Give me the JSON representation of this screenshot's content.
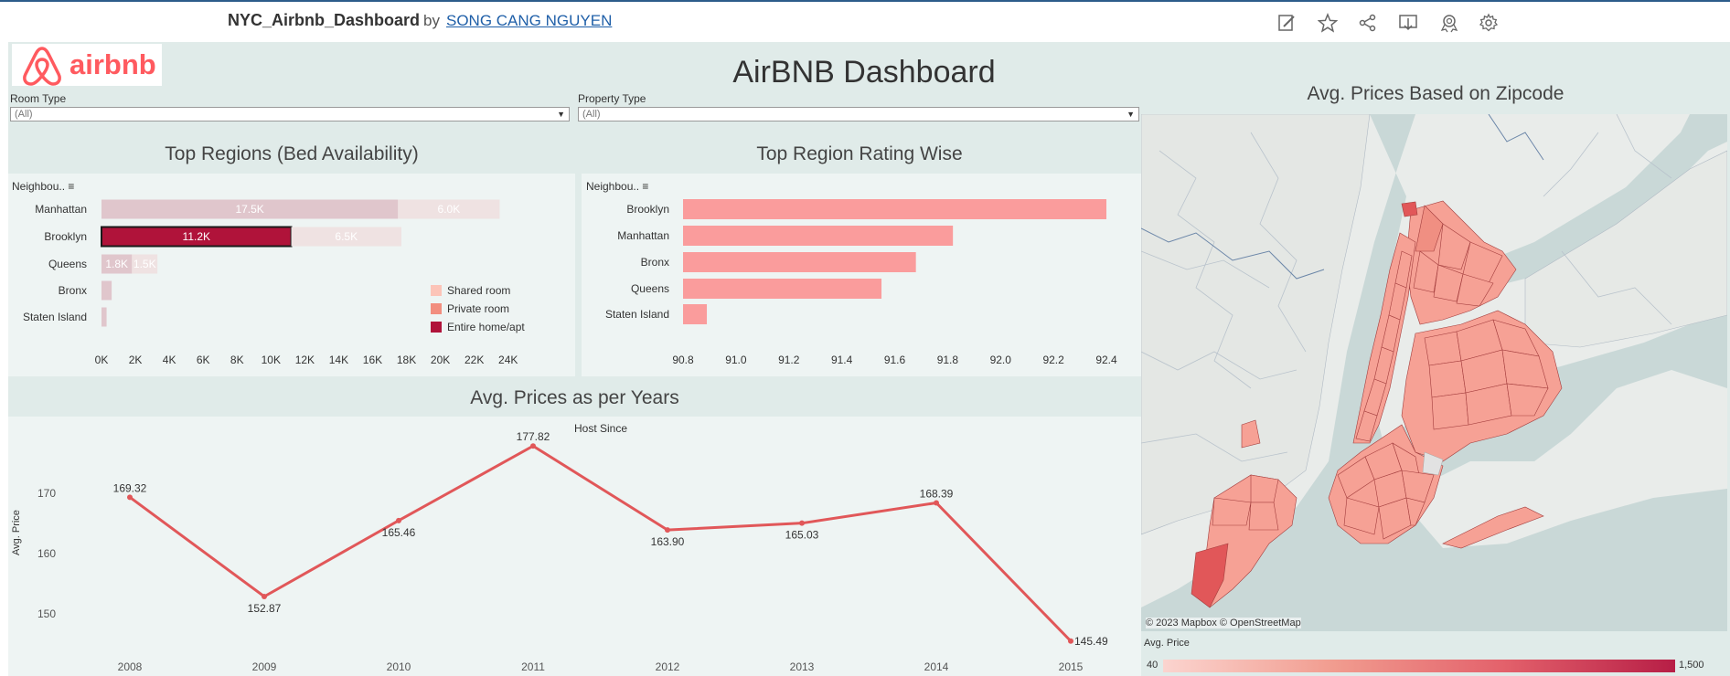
{
  "header": {
    "title": "NYC_Airbnb_Dashboard",
    "by": "by",
    "author": "SONG CANG NGUYEN",
    "toolbar_icons": [
      "edit-icon",
      "star-icon",
      "share-icon",
      "download-icon",
      "badge-icon",
      "gear-icon"
    ]
  },
  "dashboard": {
    "logo_text": "airbnb",
    "title": "AirBNB Dashboard"
  },
  "filters": {
    "room_type": {
      "label": "Room Type",
      "value": "(All)"
    },
    "property_type": {
      "label": "Property Type",
      "value": "(All)"
    }
  },
  "bed_chart": {
    "title": "Top Regions (Bed Availability)",
    "header": "Neighbou..",
    "legend": [
      "Shared room",
      "Private room",
      "Entire home/apt"
    ],
    "colors": {
      "shared": "#ead9d9",
      "private": "#dcc3c8",
      "entire": "#b0133a",
      "entire_light": "#e0c6cc",
      "shared_light": "#efe2e2"
    }
  },
  "rating_chart": {
    "title": "Top Region Rating Wise",
    "header": "Neighbou..",
    "color": "#fa9c9c"
  },
  "line_chart": {
    "title": "Avg. Prices as per Years",
    "top_label": "Host Since",
    "ylabel": "Avg. Price",
    "color": "#e15759"
  },
  "map": {
    "title": "Avg. Prices Based on Zipcode",
    "attribution": "© 2023 Mapbox  © OpenStreetMap",
    "legend_title": "Avg. Price",
    "legend_min": "40",
    "legend_max": "1,500"
  },
  "chart_data": [
    {
      "type": "bar",
      "title": "Top Regions (Bed Availability)",
      "categories": [
        "Manhattan",
        "Brooklyn",
        "Queens",
        "Bronx",
        "Staten Island"
      ],
      "series": [
        {
          "name": "Entire home/apt",
          "values": [
            17500,
            11200,
            1800,
            600,
            300
          ]
        },
        {
          "name": "Private room",
          "values": [
            6000,
            6500,
            1500,
            0,
            0
          ]
        }
      ],
      "data_labels": [
        [
          "17.5K",
          "6.0K"
        ],
        [
          "11.2K",
          "6.5K"
        ],
        [
          "1.8K",
          "1.5K"
        ],
        [
          "",
          ""
        ],
        [
          "",
          ""
        ]
      ],
      "xticks": [
        "0K",
        "2K",
        "4K",
        "6K",
        "8K",
        "10K",
        "12K",
        "14K",
        "16K",
        "18K",
        "20K",
        "22K",
        "24K"
      ],
      "xlim": [
        0,
        24500
      ],
      "legend": "right"
    },
    {
      "type": "bar",
      "title": "Top Region Rating Wise",
      "categories": [
        "Brooklyn",
        "Manhattan",
        "Bronx",
        "Queens",
        "Staten Island"
      ],
      "values": [
        92.4,
        91.82,
        91.68,
        91.55,
        90.89
      ],
      "xticks": [
        "90.8",
        "91.0",
        "91.2",
        "91.4",
        "91.6",
        "91.8",
        "92.0",
        "92.2",
        "92.4"
      ],
      "xlim": [
        90.8,
        92.4
      ]
    },
    {
      "type": "line",
      "title": "Avg. Prices as per Years",
      "xlabel": "Host Since",
      "ylabel": "Avg. Price",
      "x": [
        "2008",
        "2009",
        "2010",
        "2011",
        "2012",
        "2013",
        "2014",
        "2015"
      ],
      "values": [
        169.32,
        152.87,
        165.46,
        177.82,
        163.9,
        165.03,
        168.39,
        145.49
      ],
      "labels": [
        "169.32",
        "152.87",
        "165.46",
        "177.82",
        "163.90",
        "165.03",
        "168.39",
        "145.49"
      ],
      "yticks": [
        "150",
        "160",
        "170"
      ],
      "ylim": [
        145,
        178
      ]
    }
  ]
}
